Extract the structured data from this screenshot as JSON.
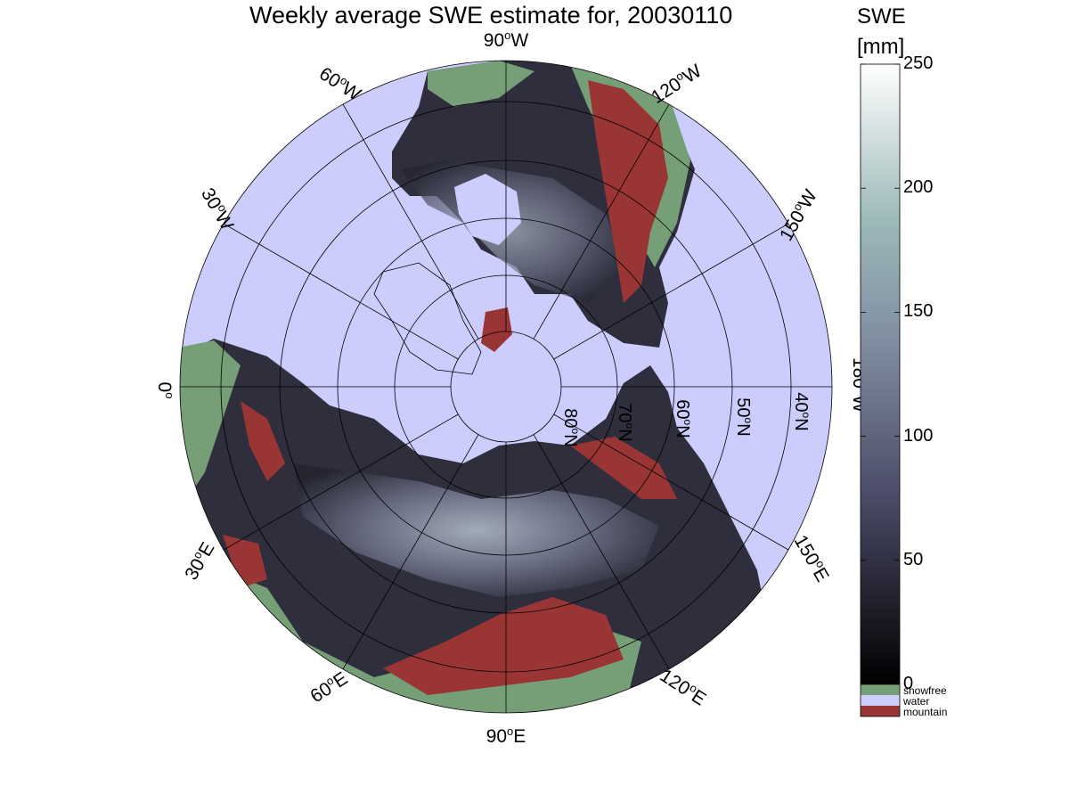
{
  "title": "Weekly average SWE estimate for, 20030110",
  "colorbar": {
    "label_line1": "SWE",
    "label_line2": "[mm]",
    "ticks": [
      "250",
      "200",
      "150",
      "100",
      "50",
      "0"
    ],
    "range": [
      0,
      250
    ],
    "colors": {
      "high": "#ffffff",
      "mid": "#8ca8a8",
      "low_mid": "#5a5a78",
      "low": "#000000"
    }
  },
  "categories": [
    {
      "label": "snowfree",
      "color": "#779f77"
    },
    {
      "label": "water",
      "color": "#cccdfd"
    },
    {
      "label": "mountain",
      "color": "#9a3535"
    }
  ],
  "map": {
    "projection": "north polar stereographic",
    "longitude_labels": [
      {
        "text": "90",
        "sup": "o",
        "dir": "W"
      },
      {
        "text": "60",
        "sup": "o",
        "dir": "W"
      },
      {
        "text": "120",
        "sup": "o",
        "dir": "W"
      },
      {
        "text": "30",
        "sup": "o",
        "dir": "W"
      },
      {
        "text": "150",
        "sup": "o",
        "dir": "W"
      },
      {
        "text": "0",
        "sup": "o",
        "dir": ""
      },
      {
        "text": "180",
        "sup": "o",
        "dir": "W"
      },
      {
        "text": "30",
        "sup": "o",
        "dir": "E"
      },
      {
        "text": "150",
        "sup": "o",
        "dir": "E"
      },
      {
        "text": "60",
        "sup": "o",
        "dir": "E"
      },
      {
        "text": "120",
        "sup": "o",
        "dir": "E"
      },
      {
        "text": "90",
        "sup": "o",
        "dir": "E"
      }
    ],
    "latitude_labels": [
      {
        "text": "80",
        "sup": "o",
        "dir": "N"
      },
      {
        "text": "70",
        "sup": "o",
        "dir": "N"
      },
      {
        "text": "60",
        "sup": "o",
        "dir": "N"
      },
      {
        "text": "50",
        "sup": "o",
        "dir": "N"
      },
      {
        "text": "40",
        "sup": "o",
        "dir": "N"
      }
    ]
  }
}
